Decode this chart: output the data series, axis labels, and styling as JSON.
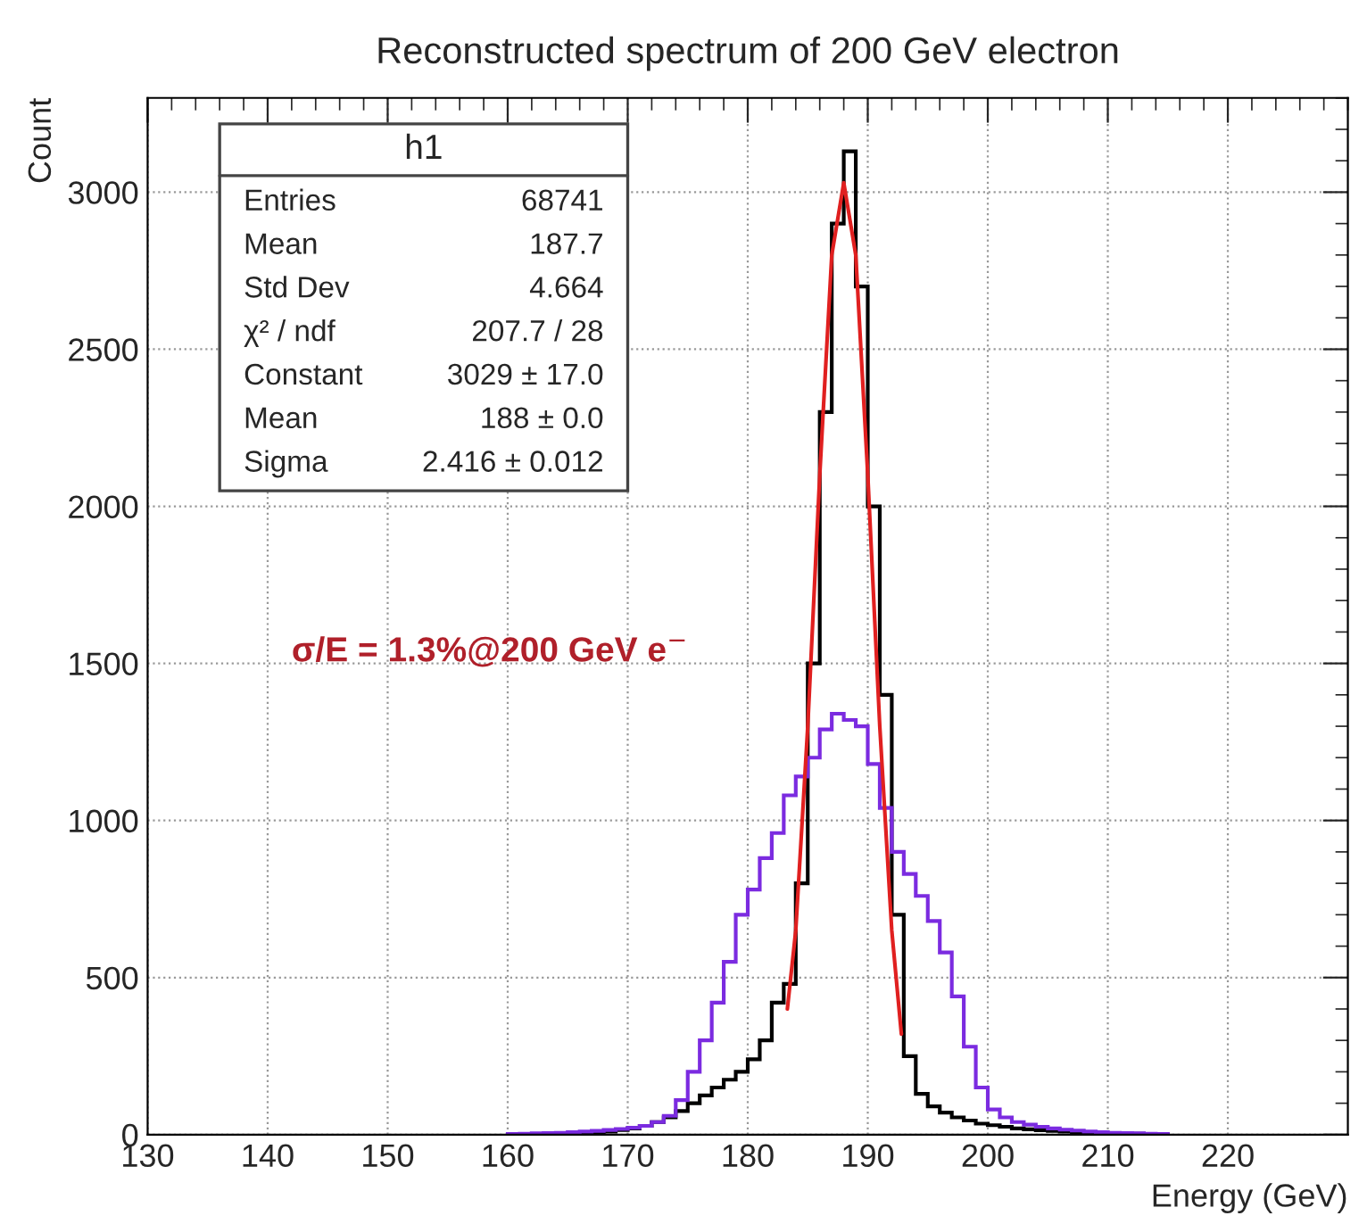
{
  "chart_data": {
    "type": "histogram",
    "title": "Reconstructed spectrum of 200 GeV electron",
    "xlabel": "Energy (GeV)",
    "ylabel": "Count",
    "bins": [
      160,
      161,
      162,
      163,
      164,
      165,
      166,
      167,
      168,
      169,
      170,
      171,
      172,
      173,
      174,
      175,
      176,
      177,
      178,
      179,
      180,
      181,
      182,
      183,
      184,
      185,
      186,
      187,
      188,
      189,
      190,
      191,
      192,
      193,
      194,
      195,
      196,
      197,
      198,
      199,
      200,
      201,
      202,
      203,
      204,
      205,
      206,
      207,
      208,
      209,
      210,
      211,
      212,
      213,
      214,
      215
    ],
    "series": [
      {
        "color": "#000000",
        "values": [
          0,
          0,
          2,
          3,
          4,
          5,
          6,
          8,
          10,
          15,
          20,
          28,
          40,
          55,
          75,
          100,
          125,
          150,
          175,
          200,
          240,
          300,
          420,
          480,
          800,
          1500,
          2300,
          2900,
          3130,
          2700,
          2000,
          1400,
          700,
          250,
          130,
          90,
          70,
          55,
          45,
          35,
          30,
          25,
          20,
          17,
          14,
          12,
          10,
          8,
          7,
          6,
          5,
          4,
          3,
          2,
          1
        ]
      },
      {
        "color": "#7b2be0",
        "values": [
          2,
          3,
          4,
          5,
          6,
          8,
          10,
          12,
          15,
          18,
          22,
          28,
          40,
          60,
          110,
          200,
          300,
          420,
          550,
          700,
          780,
          880,
          960,
          1080,
          1140,
          1200,
          1290,
          1340,
          1320,
          1300,
          1180,
          1040,
          900,
          830,
          760,
          680,
          580,
          440,
          280,
          150,
          80,
          55,
          40,
          32,
          25,
          20,
          16,
          13,
          10,
          8,
          6,
          5,
          4,
          3,
          2
        ]
      },
      {
        "type": "line",
        "color": "#e02020",
        "x": [
          183.3,
          184,
          185,
          186,
          187,
          188,
          189,
          190,
          191,
          192,
          192.8
        ],
        "values": [
          400,
          650,
          1300,
          2100,
          2800,
          3030,
          2800,
          2100,
          1300,
          650,
          320
        ]
      }
    ],
    "xlim": [
      130,
      230
    ],
    "xticks": [
      130,
      140,
      150,
      160,
      170,
      180,
      190,
      200,
      210,
      220
    ],
    "ylim": [
      0,
      3300
    ],
    "yticks": [
      0,
      500,
      1000,
      1500,
      2000,
      2500,
      3000
    ],
    "grid": true,
    "line_style": "solid",
    "annotations": [
      "h1",
      "Entries",
      "68741",
      "Mean",
      "187.7",
      "Std Dev",
      "4.664",
      "χ² / ndf",
      "207.7 / 28",
      "Constant",
      "3029 ± 17.0",
      "Mean",
      "188 ± 0.0",
      "Sigma",
      "2.416 ± 0.012",
      "σ/E = 1.3%@200 GeV e$^{−}$"
    ]
  }
}
